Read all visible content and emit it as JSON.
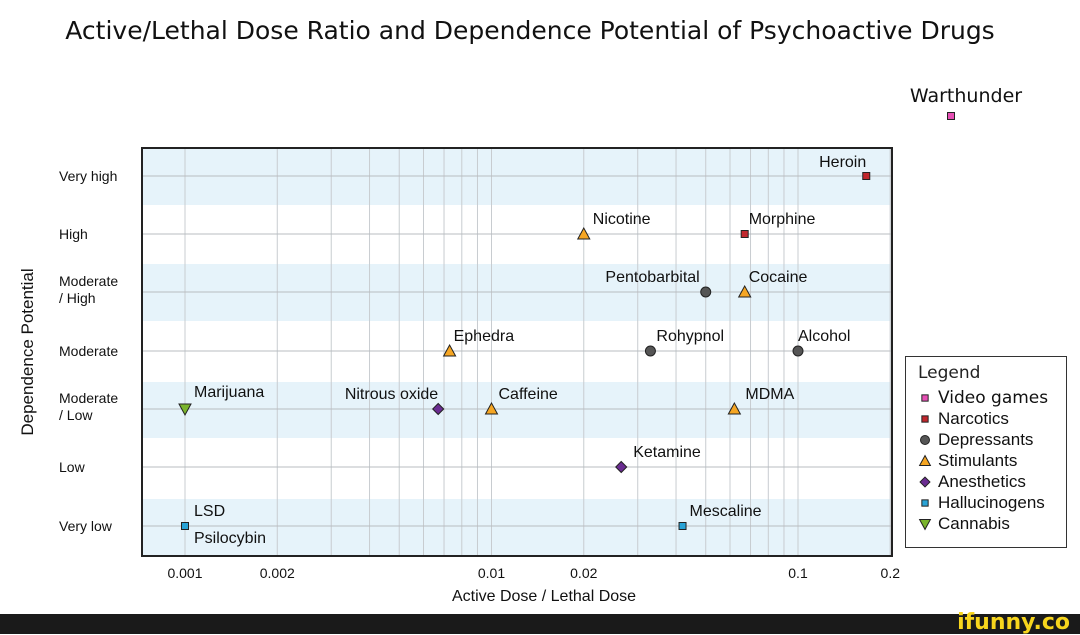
{
  "chart_data": {
    "type": "scatter",
    "title": "Active/Lethal Dose Ratio and Dependence Potential of Psychoactive Drugs",
    "xlabel": "Active Dose / Lethal Dose",
    "ylabel": "Dependence Potential",
    "xscale": "log",
    "xlim": [
      0.00085,
      0.2
    ],
    "xticks": [
      {
        "value": 0.001,
        "label": "0.001"
      },
      {
        "value": 0.002,
        "label": "0.002"
      },
      {
        "value": 0.01,
        "label": "0.01"
      },
      {
        "value": 0.02,
        "label": "0.02"
      },
      {
        "value": 0.1,
        "label": "0.1"
      },
      {
        "value": 0.2,
        "label": "0.2"
      }
    ],
    "ycategories": [
      "Very low",
      "Low",
      "Moderate / Low",
      "Moderate",
      "Moderate / High",
      "High",
      "Very high"
    ],
    "grid": true,
    "legend_position": "right",
    "legend_title": "Legend",
    "groups": [
      {
        "name": "Video games",
        "marker": "square",
        "color": "#e64fb4"
      },
      {
        "name": "Narcotics",
        "marker": "square",
        "color": "#c0272d"
      },
      {
        "name": "Depressants",
        "marker": "circle",
        "color": "#555555"
      },
      {
        "name": "Stimulants",
        "marker": "triangle-up",
        "color": "#f6a623"
      },
      {
        "name": "Anesthetics",
        "marker": "diamond",
        "color": "#6a2c91"
      },
      {
        "name": "Hallucinogens",
        "marker": "square",
        "color": "#29a3d6"
      },
      {
        "name": "Cannabis",
        "marker": "triangle-down",
        "color": "#7ab42c"
      }
    ],
    "points": [
      {
        "label": "Heroin",
        "x": 0.167,
        "y": "Very high",
        "group": "Narcotics"
      },
      {
        "label": "Nicotine",
        "x": 0.02,
        "y": "High",
        "group": "Stimulants"
      },
      {
        "label": "Morphine",
        "x": 0.067,
        "y": "High",
        "group": "Narcotics"
      },
      {
        "label": "Pentobarbital",
        "x": 0.05,
        "y": "Moderate / High",
        "group": "Depressants"
      },
      {
        "label": "Cocaine",
        "x": 0.067,
        "y": "Moderate / High",
        "group": "Stimulants"
      },
      {
        "label": "Ephedra",
        "x": 0.0073,
        "y": "Moderate",
        "group": "Stimulants"
      },
      {
        "label": "Rohypnol",
        "x": 0.033,
        "y": "Moderate",
        "group": "Depressants"
      },
      {
        "label": "Alcohol",
        "x": 0.1,
        "y": "Moderate",
        "group": "Depressants"
      },
      {
        "label": "Marijuana",
        "x": 0.001,
        "y": "Moderate / Low",
        "group": "Cannabis"
      },
      {
        "label": "Nitrous oxide",
        "x": 0.0067,
        "y": "Moderate / Low",
        "group": "Anesthetics"
      },
      {
        "label": "Caffeine",
        "x": 0.01,
        "y": "Moderate / Low",
        "group": "Stimulants"
      },
      {
        "label": "MDMA",
        "x": 0.062,
        "y": "Moderate / Low",
        "group": "Stimulants"
      },
      {
        "label": "Ketamine",
        "x": 0.0265,
        "y": "Low",
        "group": "Anesthetics"
      },
      {
        "label": "LSD",
        "x": 0.001,
        "y": "Very low",
        "group": "Hallucinogens"
      },
      {
        "label": "Psilocybin",
        "x": 0.001,
        "y": "Very low",
        "group": "Hallucinogens"
      },
      {
        "label": "Mescaline",
        "x": 0.042,
        "y": "Very low",
        "group": "Hallucinogens"
      }
    ],
    "annotations": [
      {
        "label": "Warthunder",
        "group": "Video games",
        "placement": "outside plot, top-right"
      }
    ]
  },
  "footer": {
    "watermark": "ifunny.co"
  }
}
